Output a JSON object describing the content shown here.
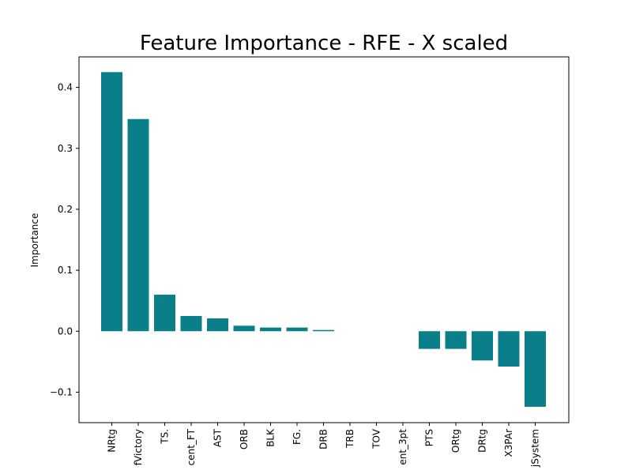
{
  "chart_data": {
    "type": "bar",
    "title": "Feature Importance - RFE - X scaled",
    "xlabel": "",
    "ylabel": "Importance",
    "categories": [
      "NRtg",
      "fVictory",
      "TS.",
      "cent_FT",
      "AST",
      "ORB",
      "BLK",
      "FG.",
      "DRB",
      "TRB",
      "TOV",
      "ent_3pt",
      "PTS",
      "ORtg",
      "DRtg",
      "X3PAr",
      "jSystem"
    ],
    "values": [
      0.425,
      0.348,
      0.06,
      0.025,
      0.021,
      0.009,
      0.006,
      0.006,
      0.002,
      0.0,
      0.0,
      0.0,
      -0.029,
      -0.029,
      -0.048,
      -0.058,
      -0.124
    ],
    "ylim": [
      -0.15,
      0.45
    ],
    "yticks": [
      -0.1,
      0.0,
      0.1,
      0.2,
      0.3,
      0.4
    ],
    "ytick_labels": [
      "−0.1",
      "0.0",
      "0.1",
      "0.2",
      "0.3",
      "0.4"
    ],
    "bar_color": "#0a7f89",
    "grid": false,
    "legend": "none"
  }
}
